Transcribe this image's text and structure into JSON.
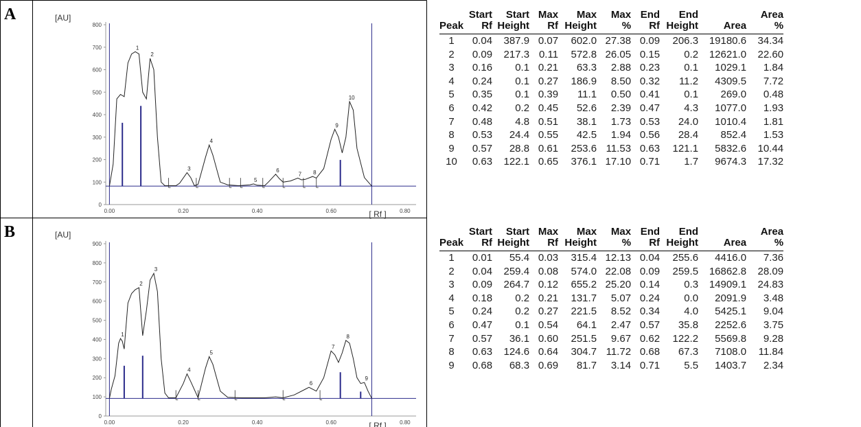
{
  "panels": [
    {
      "letter": "A",
      "axis_unit_y": "[AU]",
      "axis_unit_x": "[ Rf ]",
      "table": {
        "headers": [
          [
            "",
            "Peak"
          ],
          [
            "Start",
            "Rf"
          ],
          [
            "Start",
            "Height"
          ],
          [
            "Max",
            "Rf"
          ],
          [
            "Max",
            "Height"
          ],
          [
            "Max",
            "%"
          ],
          [
            "End",
            "Rf"
          ],
          [
            "End",
            "Height"
          ],
          [
            "",
            "Area"
          ],
          [
            "Area",
            "%"
          ]
        ],
        "rows": [
          [
            "1",
            "0.04",
            "387.9",
            "0.07",
            "602.0",
            "27.38",
            "0.09",
            "206.3",
            "19180.6",
            "34.34"
          ],
          [
            "2",
            "0.09",
            "217.3",
            "0.11",
            "572.8",
            "26.05",
            "0.15",
            "0.2",
            "12621.0",
            "22.60"
          ],
          [
            "3",
            "0.16",
            "0.1",
            "0.21",
            "63.3",
            "2.88",
            "0.23",
            "0.1",
            "1029.1",
            "1.84"
          ],
          [
            "4",
            "0.24",
            "0.1",
            "0.27",
            "186.9",
            "8.50",
            "0.32",
            "11.2",
            "4309.5",
            "7.72"
          ],
          [
            "5",
            "0.35",
            "0.1",
            "0.39",
            "11.1",
            "0.50",
            "0.41",
            "0.1",
            "269.0",
            "0.48"
          ],
          [
            "6",
            "0.42",
            "0.2",
            "0.45",
            "52.6",
            "2.39",
            "0.47",
            "4.3",
            "1077.0",
            "1.93"
          ],
          [
            "7",
            "0.48",
            "4.8",
            "0.51",
            "38.1",
            "1.73",
            "0.53",
            "24.0",
            "1010.4",
            "1.81"
          ],
          [
            "8",
            "0.53",
            "24.4",
            "0.55",
            "42.5",
            "1.94",
            "0.56",
            "28.4",
            "852.4",
            "1.53"
          ],
          [
            "9",
            "0.57",
            "28.8",
            "0.61",
            "253.6",
            "11.53",
            "0.63",
            "121.1",
            "5832.6",
            "10.44"
          ],
          [
            "10",
            "0.63",
            "122.1",
            "0.65",
            "376.1",
            "17.10",
            "0.71",
            "1.7",
            "9674.3",
            "17.32"
          ]
        ]
      }
    },
    {
      "letter": "B",
      "axis_unit_y": "[AU]",
      "axis_unit_x": "[ Rf ]",
      "table": {
        "headers": [
          [
            "",
            "Peak"
          ],
          [
            "Start",
            "Rf"
          ],
          [
            "Start",
            "Height"
          ],
          [
            "Max",
            "Rf"
          ],
          [
            "Max",
            "Height"
          ],
          [
            "Max",
            "%"
          ],
          [
            "End",
            "Rf"
          ],
          [
            "End",
            "Height"
          ],
          [
            "",
            "Area"
          ],
          [
            "Area",
            "%"
          ]
        ],
        "rows": [
          [
            "1",
            "0.01",
            "55.4",
            "0.03",
            "315.4",
            "12.13",
            "0.04",
            "255.6",
            "4416.0",
            "7.36"
          ],
          [
            "2",
            "0.04",
            "259.4",
            "0.08",
            "574.0",
            "22.08",
            "0.09",
            "259.5",
            "16862.8",
            "28.09"
          ],
          [
            "3",
            "0.09",
            "264.7",
            "0.12",
            "655.2",
            "25.20",
            "0.14",
            "0.3",
            "14909.1",
            "24.83"
          ],
          [
            "4",
            "0.18",
            "0.2",
            "0.21",
            "131.7",
            "5.07",
            "0.24",
            "0.0",
            "2091.9",
            "3.48"
          ],
          [
            "5",
            "0.24",
            "0.2",
            "0.27",
            "221.5",
            "8.52",
            "0.34",
            "4.0",
            "5425.1",
            "9.04"
          ],
          [
            "6",
            "0.47",
            "0.1",
            "0.54",
            "64.1",
            "2.47",
            "0.57",
            "35.8",
            "2252.6",
            "3.75"
          ],
          [
            "7",
            "0.57",
            "36.1",
            "0.60",
            "251.5",
            "9.67",
            "0.62",
            "122.2",
            "5569.8",
            "9.28"
          ],
          [
            "8",
            "0.63",
            "124.6",
            "0.64",
            "304.7",
            "11.72",
            "0.68",
            "67.3",
            "7108.0",
            "11.84"
          ],
          [
            "9",
            "0.68",
            "68.3",
            "0.69",
            "81.7",
            "3.14",
            "0.71",
            "5.5",
            "1403.7",
            "2.34"
          ]
        ]
      }
    }
  ],
  "chart_data": [
    {
      "type": "line",
      "xlim": [
        -0.01,
        0.83
      ],
      "ylim": [
        0,
        800
      ],
      "x_ticks": [
        "0.00",
        "0.20",
        "0.40",
        "0.60",
        "0.80"
      ],
      "x_tick_values": [
        0.0,
        0.2,
        0.4,
        0.6,
        0.8
      ],
      "y_ticks": [
        "0",
        "100",
        "200",
        "300",
        "400",
        "500",
        "600",
        "700",
        "800"
      ],
      "baseline": 82,
      "markers": [
        0.0,
        0.71
      ],
      "peaks": [
        {
          "label": "1",
          "rf": 0.07,
          "height": 680
        },
        {
          "label": "2",
          "rf": 0.11,
          "height": 650
        },
        {
          "label": "3",
          "rf": 0.21,
          "height": 142
        },
        {
          "label": "4",
          "rf": 0.27,
          "height": 265
        },
        {
          "label": "5",
          "rf": 0.39,
          "height": 92
        },
        {
          "label": "6",
          "rf": 0.45,
          "height": 135
        },
        {
          "label": "7",
          "rf": 0.51,
          "height": 118
        },
        {
          "label": "8",
          "rf": 0.55,
          "height": 125
        },
        {
          "label": "9",
          "rf": 0.61,
          "height": 335
        },
        {
          "label": "10",
          "rf": 0.65,
          "height": 458
        }
      ],
      "curve": [
        [
          0.0,
          82
        ],
        [
          0.01,
          180
        ],
        [
          0.02,
          470
        ],
        [
          0.03,
          490
        ],
        [
          0.04,
          480
        ],
        [
          0.05,
          630
        ],
        [
          0.06,
          670
        ],
        [
          0.07,
          680
        ],
        [
          0.08,
          670
        ],
        [
          0.09,
          500
        ],
        [
          0.1,
          470
        ],
        [
          0.11,
          650
        ],
        [
          0.12,
          600
        ],
        [
          0.13,
          300
        ],
        [
          0.14,
          100
        ],
        [
          0.15,
          84
        ],
        [
          0.18,
          84
        ],
        [
          0.19,
          95
        ],
        [
          0.21,
          142
        ],
        [
          0.22,
          120
        ],
        [
          0.23,
          84
        ],
        [
          0.24,
          90
        ],
        [
          0.26,
          210
        ],
        [
          0.27,
          265
        ],
        [
          0.28,
          220
        ],
        [
          0.3,
          100
        ],
        [
          0.32,
          88
        ],
        [
          0.35,
          84
        ],
        [
          0.38,
          88
        ],
        [
          0.39,
          92
        ],
        [
          0.4,
          86
        ],
        [
          0.42,
          84
        ],
        [
          0.43,
          100
        ],
        [
          0.45,
          135
        ],
        [
          0.46,
          115
        ],
        [
          0.47,
          100
        ],
        [
          0.49,
          105
        ],
        [
          0.51,
          118
        ],
        [
          0.52,
          110
        ],
        [
          0.53,
          112
        ],
        [
          0.55,
          125
        ],
        [
          0.56,
          118
        ],
        [
          0.58,
          160
        ],
        [
          0.6,
          290
        ],
        [
          0.61,
          335
        ],
        [
          0.62,
          300
        ],
        [
          0.63,
          230
        ],
        [
          0.64,
          300
        ],
        [
          0.65,
          458
        ],
        [
          0.66,
          420
        ],
        [
          0.67,
          250
        ],
        [
          0.69,
          120
        ],
        [
          0.71,
          82
        ]
      ],
      "integration_drops": [
        [
          0.035,
          "tall"
        ],
        [
          0.085,
          "tall"
        ],
        [
          0.16,
          "short"
        ],
        [
          0.235,
          "short"
        ],
        [
          0.325,
          "short"
        ],
        [
          0.355,
          "short"
        ],
        [
          0.415,
          "short"
        ],
        [
          0.47,
          "short"
        ],
        [
          0.525,
          "short"
        ],
        [
          0.56,
          "short"
        ],
        [
          0.625,
          "tall"
        ]
      ]
    },
    {
      "type": "line",
      "xlim": [
        -0.01,
        0.83
      ],
      "ylim": [
        0,
        900
      ],
      "x_ticks": [
        "0.00",
        "0.20",
        "0.40",
        "0.60",
        "0.80"
      ],
      "x_tick_values": [
        0.0,
        0.2,
        0.4,
        0.6,
        0.8
      ],
      "y_ticks": [
        "0",
        "100",
        "200",
        "300",
        "400",
        "500",
        "600",
        "700",
        "800",
        "900"
      ],
      "baseline": 92,
      "markers": [
        0.0,
        0.71
      ],
      "peaks": [
        {
          "label": "1",
          "rf": 0.03,
          "height": 405
        },
        {
          "label": "2",
          "rf": 0.08,
          "height": 670
        },
        {
          "label": "3",
          "rf": 0.12,
          "height": 745
        },
        {
          "label": "4",
          "rf": 0.21,
          "height": 220
        },
        {
          "label": "5",
          "rf": 0.27,
          "height": 310
        },
        {
          "label": "6",
          "rf": 0.54,
          "height": 150
        },
        {
          "label": "7",
          "rf": 0.6,
          "height": 340
        },
        {
          "label": "8",
          "rf": 0.64,
          "height": 395
        },
        {
          "label": "9",
          "rf": 0.69,
          "height": 175
        }
      ],
      "curve": [
        [
          0.0,
          92
        ],
        [
          0.005,
          140
        ],
        [
          0.015,
          210
        ],
        [
          0.025,
          380
        ],
        [
          0.03,
          405
        ],
        [
          0.035,
          390
        ],
        [
          0.04,
          350
        ],
        [
          0.05,
          590
        ],
        [
          0.06,
          640
        ],
        [
          0.07,
          660
        ],
        [
          0.08,
          670
        ],
        [
          0.09,
          420
        ],
        [
          0.1,
          550
        ],
        [
          0.11,
          710
        ],
        [
          0.12,
          745
        ],
        [
          0.13,
          650
        ],
        [
          0.14,
          300
        ],
        [
          0.15,
          120
        ],
        [
          0.16,
          95
        ],
        [
          0.18,
          95
        ],
        [
          0.2,
          170
        ],
        [
          0.21,
          220
        ],
        [
          0.22,
          180
        ],
        [
          0.24,
          95
        ],
        [
          0.26,
          250
        ],
        [
          0.27,
          310
        ],
        [
          0.28,
          270
        ],
        [
          0.3,
          130
        ],
        [
          0.32,
          98
        ],
        [
          0.36,
          95
        ],
        [
          0.42,
          95
        ],
        [
          0.45,
          100
        ],
        [
          0.47,
          95
        ],
        [
          0.5,
          110
        ],
        [
          0.53,
          140
        ],
        [
          0.54,
          150
        ],
        [
          0.56,
          130
        ],
        [
          0.58,
          200
        ],
        [
          0.6,
          340
        ],
        [
          0.61,
          320
        ],
        [
          0.62,
          280
        ],
        [
          0.63,
          330
        ],
        [
          0.64,
          395
        ],
        [
          0.65,
          380
        ],
        [
          0.66,
          300
        ],
        [
          0.67,
          200
        ],
        [
          0.68,
          170
        ],
        [
          0.69,
          175
        ],
        [
          0.7,
          130
        ],
        [
          0.71,
          92
        ]
      ],
      "integration_drops": [
        [
          0.04,
          "tall"
        ],
        [
          0.09,
          "tall"
        ],
        [
          0.18,
          "short"
        ],
        [
          0.24,
          "short"
        ],
        [
          0.34,
          "short"
        ],
        [
          0.47,
          "short"
        ],
        [
          0.57,
          "short"
        ],
        [
          0.625,
          "tall"
        ],
        [
          0.68,
          "tall"
        ]
      ]
    }
  ]
}
